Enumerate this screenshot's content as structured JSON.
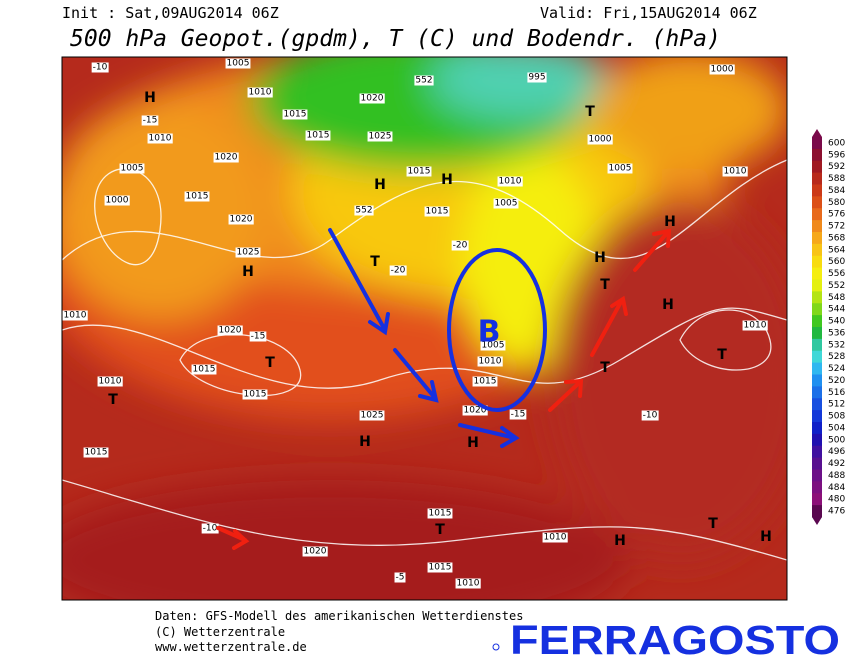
{
  "header": {
    "init": "Init : Sat,09AUG2014 06Z",
    "valid": "Valid: Fri,15AUG2014 06Z",
    "title": "500 hPa Geopot.(gpdm), T (C) und Bodendr. (hPa)"
  },
  "legend": {
    "values": [
      600,
      596,
      592,
      588,
      584,
      580,
      576,
      572,
      568,
      564,
      560,
      556,
      552,
      548,
      544,
      540,
      536,
      532,
      528,
      524,
      520,
      516,
      512,
      508,
      504,
      500,
      496,
      492,
      488,
      484,
      480,
      476
    ]
  },
  "map": {
    "labels": [
      "1005",
      "1010",
      "1015",
      "1020",
      "1025",
      "1015",
      "H",
      "1015",
      "H",
      "1015",
      "1010",
      "1005",
      "995",
      "1000",
      "1005",
      "1010",
      "1000",
      "T",
      "H",
      "T",
      "H",
      "T",
      "H",
      "T",
      "1010",
      "H",
      "1010",
      "1020",
      "1005",
      "1000",
      "1015",
      "1020",
      "1025",
      "H",
      "1010",
      "1020",
      "T",
      "1015",
      "1015",
      "1010",
      "T",
      "1015",
      "1025",
      "H",
      "H",
      "1005",
      "1010",
      "1015",
      "1020",
      "T",
      "1015",
      "T",
      "1010",
      "H",
      "T",
      "H",
      "1020",
      "1015",
      "1010",
      "-10",
      "-15",
      "-15",
      "-10",
      "-5",
      "-20",
      "-20",
      "-15",
      "-10",
      "552",
      "552"
    ],
    "annotation": "B"
  },
  "footer": {
    "line1": "Daten: GFS-Modell des amerikanischen Wetterdienstes",
    "line2": "(C) Wetterzentrale",
    "line3": "www.wetterzentrale.de",
    "banner": "FERRAGOSTO"
  }
}
